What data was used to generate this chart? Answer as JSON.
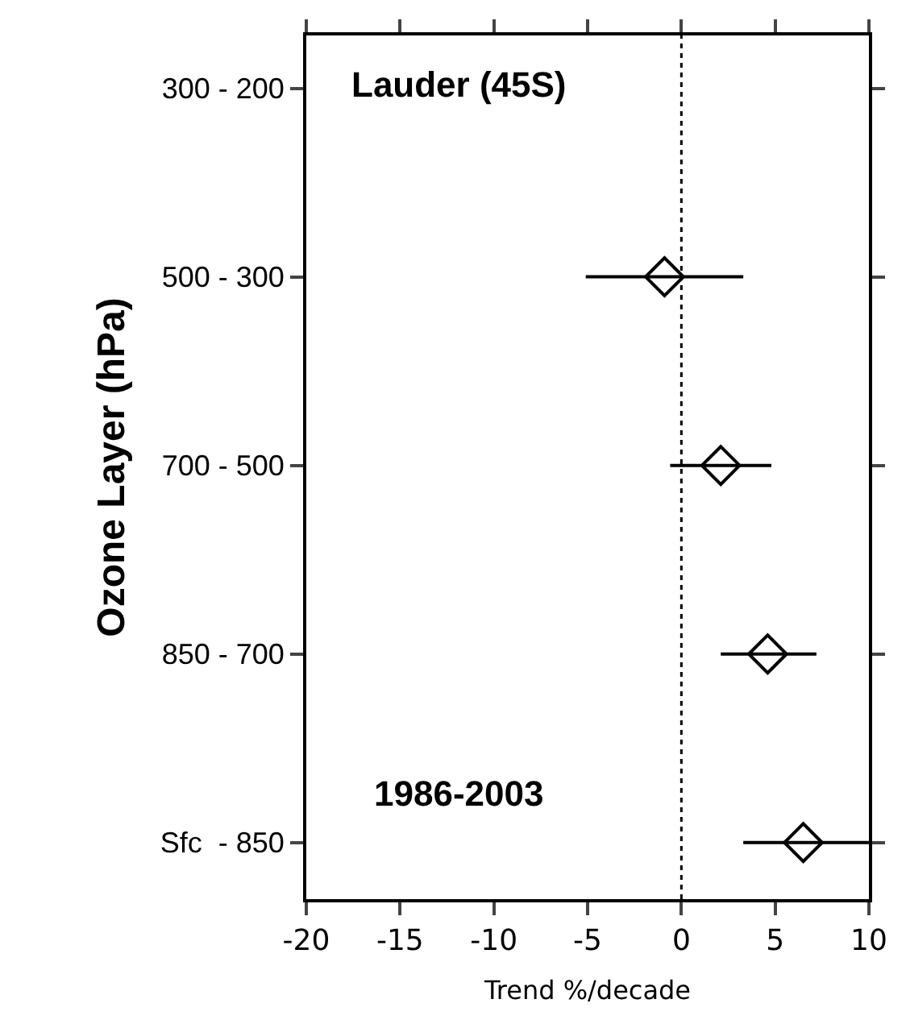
{
  "chart_data": {
    "type": "scatter",
    "orientation": "horizontal",
    "xlabel": "Trend %/decade",
    "ylabel": "Ozone Layer (hPa)",
    "categories": [
      "300 - 200",
      "500 - 300",
      "700 - 500",
      "850 - 700",
      "Sfc  - 850"
    ],
    "values": [
      null,
      -0.9,
      2.1,
      4.6,
      6.5
    ],
    "errors": [
      null,
      [
        -5.1,
        3.3
      ],
      [
        -0.6,
        4.8
      ],
      [
        2.1,
        7.2
      ],
      [
        3.3,
        10
      ]
    ],
    "color": "#000000",
    "marker": "diamond",
    "xlim": [
      -20,
      10
    ],
    "xticks": [
      -20,
      -15,
      -10,
      -5,
      0,
      5,
      10
    ],
    "ref_lines": [
      {
        "axis": "x",
        "value": 0,
        "line_style": "dotted",
        "color": "#000000"
      }
    ],
    "annotations": [
      "Lauder (45S)",
      "1986-2003"
    ],
    "legend": false
  }
}
